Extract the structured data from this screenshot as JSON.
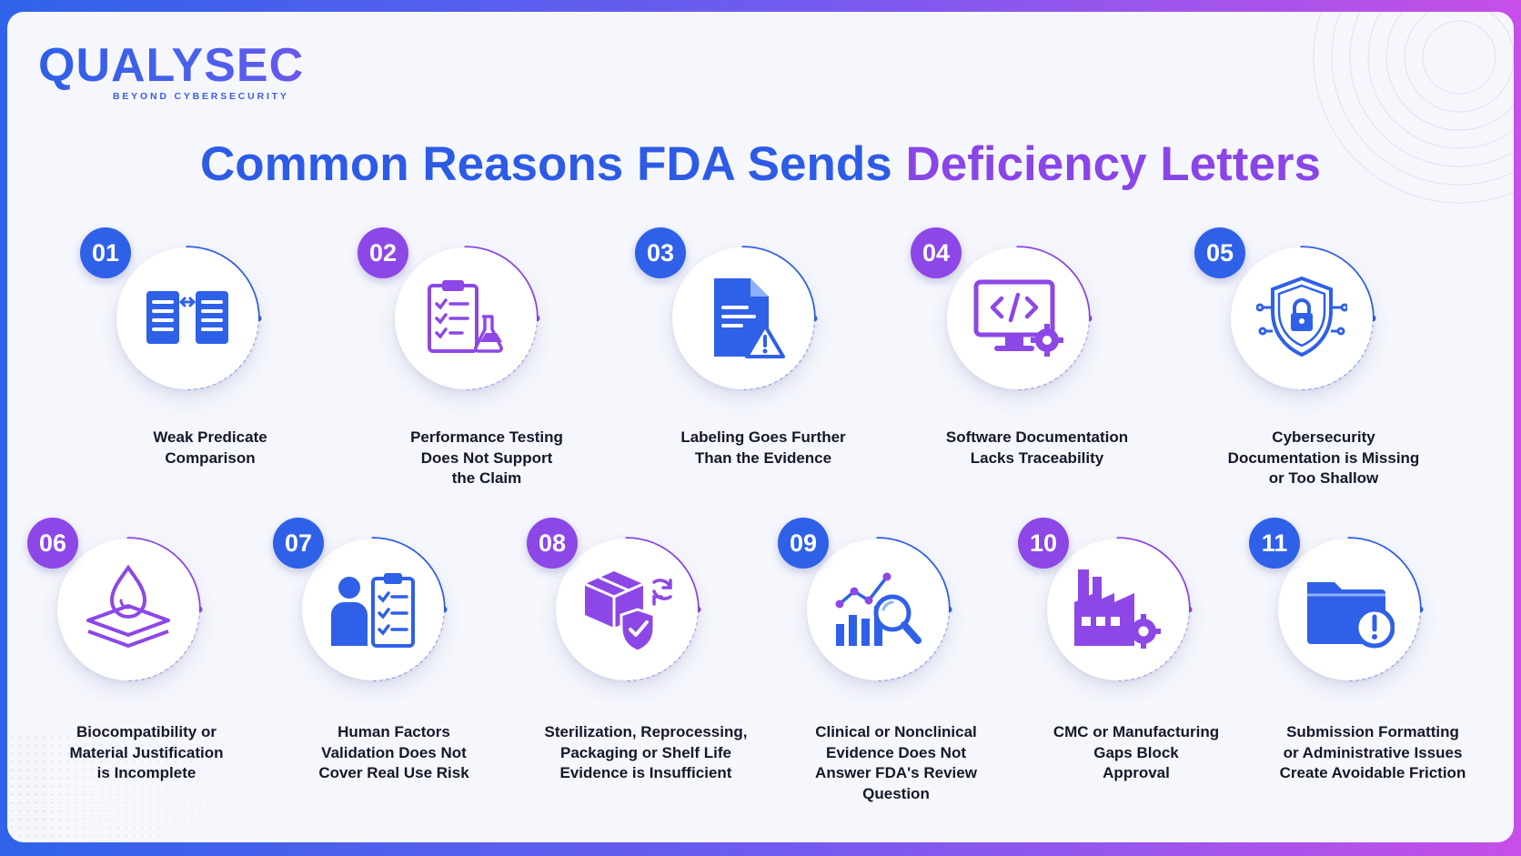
{
  "brand": {
    "name": "QUALYSEC",
    "tagline": "BEYOND CYBERSECURITY"
  },
  "title": {
    "part1": "Common Reasons FDA Sends ",
    "part2": "Deficiency Letters"
  },
  "colors": {
    "blue": "#2f60e8",
    "purple": "#8d47e6",
    "text": "#15172a"
  },
  "items": [
    {
      "number": "01",
      "line1": "Weak Predicate",
      "line2": "Comparison",
      "line3": "",
      "icon": "compare-documents-icon",
      "accent": "blue"
    },
    {
      "number": "02",
      "line1": "Performance Testing",
      "line2": "Does Not Support",
      "line3": "the Claim",
      "icon": "clipboard-flask-icon",
      "accent": "purple"
    },
    {
      "number": "03",
      "line1": "Labeling Goes Further",
      "line2": "Than the Evidence",
      "line3": "",
      "icon": "document-warning-icon",
      "accent": "blue"
    },
    {
      "number": "04",
      "line1": "Software Documentation",
      "line2": "Lacks Traceability",
      "line3": "",
      "icon": "monitor-code-gear-icon",
      "accent": "purple"
    },
    {
      "number": "05",
      "line1": "Cybersecurity",
      "line2": "Documentation is Missing",
      "line3": "or Too Shallow",
      "icon": "shield-lock-icon",
      "accent": "blue"
    },
    {
      "number": "06",
      "line1": "Biocompatibility or",
      "line2": "Material Justification",
      "line3": "is Incomplete",
      "icon": "drop-layers-icon",
      "accent": "purple"
    },
    {
      "number": "07",
      "line1": "Human Factors",
      "line2": "Validation Does Not",
      "line3": "Cover Real Use Risk",
      "icon": "person-checklist-icon",
      "accent": "blue"
    },
    {
      "number": "08",
      "line1": "Sterilization, Reprocessing,",
      "line2": "Packaging or Shelf Life",
      "line3": "Evidence is Insufficient",
      "icon": "package-shield-icon",
      "accent": "purple"
    },
    {
      "number": "09",
      "line1": "Clinical or Nonclinical",
      "line2": "Evidence Does Not",
      "line3": "Answer FDA's Review",
      "line4": "Question",
      "icon": "chart-magnifier-icon",
      "accent": "blue"
    },
    {
      "number": "10",
      "line1": "CMC or Manufacturing",
      "line2": "Gaps Block",
      "line3": "Approval",
      "icon": "factory-gear-icon",
      "accent": "purple"
    },
    {
      "number": "11",
      "line1": "Submission Formatting",
      "line2": "or Administrative Issues",
      "line3": "Create Avoidable Friction",
      "icon": "folder-alert-icon",
      "accent": "blue"
    }
  ]
}
